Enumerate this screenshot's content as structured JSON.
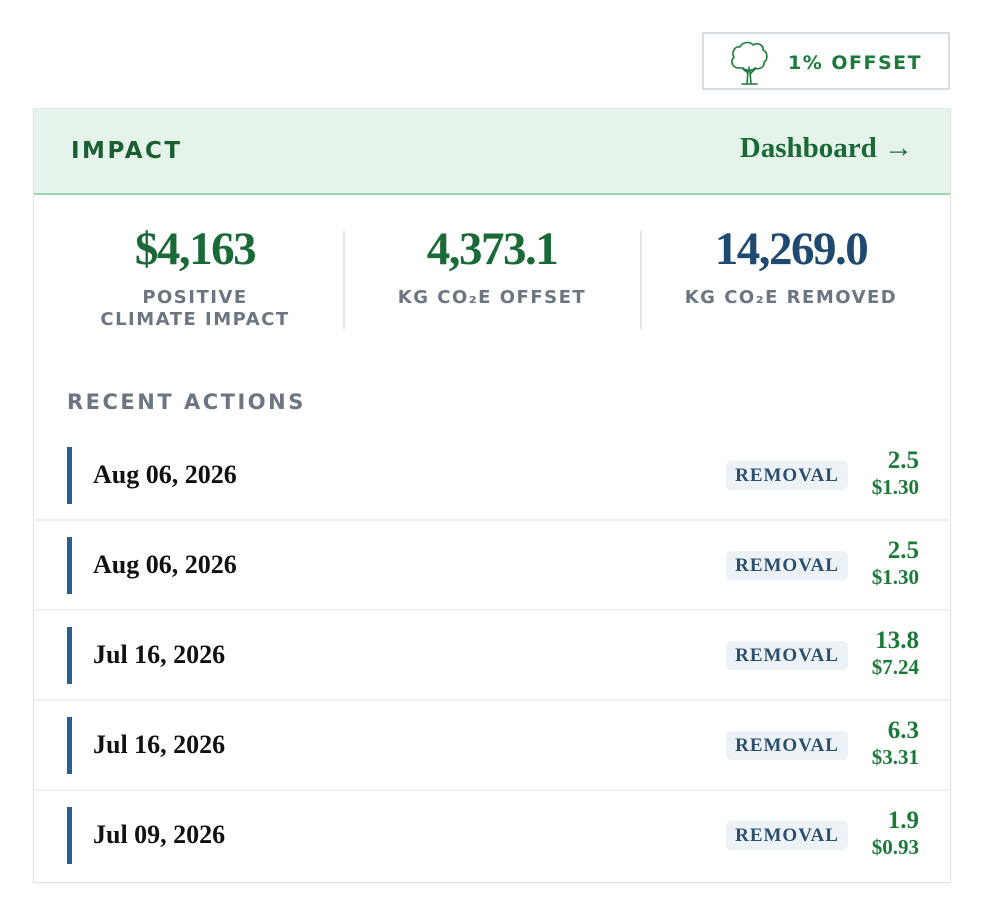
{
  "badge": {
    "icon": "tree-icon",
    "label": "1% OFFSET",
    "color": "#1b7a3a"
  },
  "header": {
    "title": "IMPACT",
    "link_label": "Dashboard →",
    "background": "#e5f3ea"
  },
  "stats": [
    {
      "value": "$4,163",
      "label": "POSITIVE CLIMATE IMPACT",
      "color": "#1a6a38"
    },
    {
      "value": "4,373.1",
      "label": "KG CO₂E OFFSET",
      "color": "#1a6a38"
    },
    {
      "value": "14,269.0",
      "label": "KG CO₂E REMOVED",
      "color": "#1e4a72"
    }
  ],
  "recent": {
    "title": "RECENT ACTIONS",
    "items": [
      {
        "date": "Aug 06, 2026",
        "type": "REMOVAL",
        "kg": "2.5",
        "usd": "$1.30"
      },
      {
        "date": "Aug 06, 2026",
        "type": "REMOVAL",
        "kg": "2.5",
        "usd": "$1.30"
      },
      {
        "date": "Jul 16, 2026",
        "type": "REMOVAL",
        "kg": "13.8",
        "usd": "$7.24"
      },
      {
        "date": "Jul 16, 2026",
        "type": "REMOVAL",
        "kg": "6.3",
        "usd": "$3.31"
      },
      {
        "date": "Jul 09, 2026",
        "type": "REMOVAL",
        "kg": "1.9",
        "usd": "$0.93"
      }
    ]
  }
}
